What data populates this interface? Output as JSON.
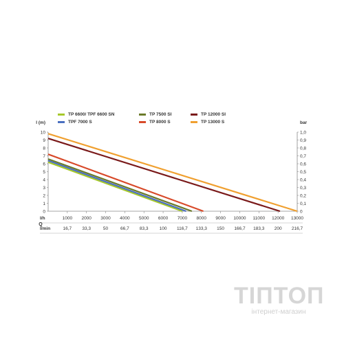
{
  "chart_data": {
    "type": "line",
    "left_axis_label": "l (m)",
    "right_axis_label": "bar",
    "left_ticks": [
      "0",
      "1",
      "2",
      "3",
      "4",
      "5",
      "6",
      "7",
      "8",
      "9",
      "10"
    ],
    "right_ticks": [
      "0",
      "0,1",
      "0,2",
      "0,3",
      "0,4",
      "0,5",
      "0,6",
      "0,7",
      "0,8",
      "0,9",
      "1,0"
    ],
    "ylim": [
      0,
      10
    ],
    "xlim": [
      0,
      13000
    ],
    "q_label": "Q",
    "lh_label": "l/h",
    "lmin_label": "l/min",
    "lh_ticks": [
      {
        "v": 1000,
        "t": "1000"
      },
      {
        "v": 2000,
        "t": "2000"
      },
      {
        "v": 3000,
        "t": "3000"
      },
      {
        "v": 4000,
        "t": "4000"
      },
      {
        "v": 5000,
        "t": "5000"
      },
      {
        "v": 6000,
        "t": "6000"
      },
      {
        "v": 7000,
        "t": "7000"
      },
      {
        "v": 8000,
        "t": "8000"
      },
      {
        "v": 9000,
        "t": "9000"
      },
      {
        "v": 10000,
        "t": "10000"
      },
      {
        "v": 11000,
        "t": "11000"
      },
      {
        "v": 12000,
        "t": "12000"
      },
      {
        "v": 13000,
        "t": "13000"
      }
    ],
    "lmin_ticks": [
      {
        "v": 1000,
        "t": "16,7"
      },
      {
        "v": 2000,
        "t": "33,3"
      },
      {
        "v": 3000,
        "t": "50"
      },
      {
        "v": 4000,
        "t": "66,7"
      },
      {
        "v": 5000,
        "t": "83,3"
      },
      {
        "v": 6000,
        "t": "100"
      },
      {
        "v": 7000,
        "t": "116,7"
      },
      {
        "v": 8000,
        "t": "133,3"
      },
      {
        "v": 9000,
        "t": "150"
      },
      {
        "v": 10000,
        "t": "166,7"
      },
      {
        "v": 11000,
        "t": "183,3"
      },
      {
        "v": 12000,
        "t": "200"
      },
      {
        "v": 13000,
        "t": "216,7"
      }
    ],
    "series": [
      {
        "name": "TP 6600/ TPF 6600 SN",
        "color": "#a6c82a",
        "x": [
          0,
          7000
        ],
        "y": [
          6.2,
          0
        ]
      },
      {
        "name": "TP 7500 SI",
        "color": "#6b7a2a",
        "x": [
          0,
          7500
        ],
        "y": [
          6.6,
          0
        ]
      },
      {
        "name": "TP 12000 SI",
        "color": "#7a1a1a",
        "x": [
          0,
          12100
        ],
        "y": [
          9.2,
          0
        ]
      },
      {
        "name": "TPF 7000 S",
        "color": "#4a6fc0",
        "x": [
          0,
          7200
        ],
        "y": [
          6.4,
          0
        ]
      },
      {
        "name": "TP 8000 S",
        "color": "#d84a2a",
        "x": [
          0,
          8100
        ],
        "y": [
          7.2,
          0
        ]
      },
      {
        "name": "TP 13000 S",
        "color": "#f0a030",
        "x": [
          0,
          13000
        ],
        "y": [
          9.8,
          0
        ]
      }
    ]
  },
  "watermark": {
    "logo": "ТІПТОП",
    "subtitle": "інтернет-магазин"
  }
}
